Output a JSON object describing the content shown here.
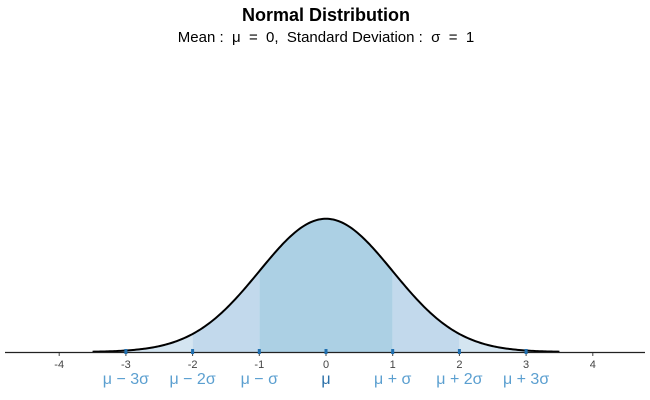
{
  "chart_data": {
    "type": "area",
    "title": "Normal Distribution",
    "subtitle": "Mean :  μ  =  0,  Standard Deviation :  σ  =  1",
    "mean": 0,
    "sd": 1,
    "x_range": [
      -3.5,
      3.5
    ],
    "xlim": [
      -4.8,
      4.8
    ],
    "x_ticks": [
      "-4",
      "-3",
      "-2",
      "-1",
      "0",
      "1",
      "2",
      "3",
      "4"
    ],
    "x_tick_values": [
      -4,
      -3,
      -2,
      -1,
      0,
      1,
      2,
      3,
      4
    ],
    "sigma_labels": [
      {
        "x": -3,
        "label": "μ − 3σ"
      },
      {
        "x": -2,
        "label": "μ − 2σ"
      },
      {
        "x": -1,
        "label": "μ − σ"
      },
      {
        "x": 0,
        "label": "μ"
      },
      {
        "x": 1,
        "label": "μ + σ"
      },
      {
        "x": 2,
        "label": "μ + 2σ"
      },
      {
        "x": 3,
        "label": "μ + 3σ"
      }
    ],
    "shaded_bands": [
      {
        "from": -1,
        "to": 1,
        "color": "#acd0e4"
      },
      {
        "from": -2,
        "to": -1,
        "color": "#c2d9ec"
      },
      {
        "from": 1,
        "to": 2,
        "color": "#c2d9ec"
      },
      {
        "from": -3,
        "to": -2,
        "color": "#d4e5f1"
      },
      {
        "from": 2,
        "to": 3,
        "color": "#d4e5f1"
      },
      {
        "from": -3.5,
        "to": -3,
        "color": "#dceaf4"
      },
      {
        "from": 3,
        "to": 3.5,
        "color": "#dceaf4"
      }
    ],
    "curve_color": "#000000",
    "marker_color": "#1f6fb0",
    "label_color": "#5b9fd0",
    "mean_label_color": "#2a6fa8",
    "grid": false
  }
}
